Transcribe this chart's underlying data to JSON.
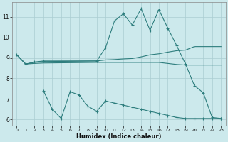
{
  "xlabel": "Humidex (Indice chaleur)",
  "bg_color": "#cce9ec",
  "grid_color": "#aacdd2",
  "line_color": "#2d7d7d",
  "xlim": [
    -0.5,
    23.5
  ],
  "ylim": [
    5.7,
    11.7
  ],
  "yticks": [
    6,
    7,
    8,
    9,
    10,
    11
  ],
  "xticks": [
    0,
    1,
    2,
    3,
    4,
    5,
    6,
    7,
    8,
    9,
    10,
    11,
    12,
    13,
    14,
    15,
    16,
    17,
    18,
    19,
    20,
    21,
    22,
    23
  ],
  "s1_has_markers": true,
  "s2_x": [
    0,
    1,
    2,
    3,
    9,
    10,
    11,
    12,
    13,
    14,
    15,
    16,
    17,
    18,
    19,
    20,
    21,
    22,
    23
  ],
  "s2_y": [
    9.15,
    8.7,
    8.78,
    8.82,
    8.85,
    8.9,
    8.92,
    8.95,
    8.97,
    9.05,
    9.15,
    9.2,
    9.28,
    9.35,
    9.38,
    9.55,
    9.55,
    9.55,
    9.55
  ],
  "s2_has_markers": false,
  "s3_x": [
    0,
    1,
    2,
    3,
    9,
    10,
    11,
    12,
    13,
    14,
    15,
    16,
    17,
    18,
    19,
    20,
    21,
    22,
    23
  ],
  "s3_y": [
    9.15,
    8.7,
    8.73,
    8.75,
    8.78,
    8.78,
    8.78,
    8.78,
    8.78,
    8.78,
    8.78,
    8.78,
    8.73,
    8.68,
    8.65,
    8.65,
    8.65,
    8.65,
    8.65
  ],
  "s3_has_markers": false,
  "s4_x": [
    3,
    4,
    5,
    6,
    7,
    8,
    9,
    10,
    11,
    12,
    13,
    14,
    15,
    16,
    17,
    18,
    19,
    20,
    21,
    22,
    23
  ],
  "s4_y": [
    7.4,
    6.5,
    6.05,
    7.35,
    7.2,
    6.65,
    6.4,
    6.9,
    6.8,
    6.7,
    6.6,
    6.5,
    6.4,
    6.3,
    6.2,
    6.1,
    6.05,
    6.05,
    6.05,
    6.05,
    6.05
  ],
  "s4_has_markers": true,
  "s1_marker_x": [
    0,
    1,
    2,
    3,
    9,
    10,
    11,
    12,
    13,
    14,
    15,
    16,
    17,
    18,
    19,
    20,
    21,
    22,
    23
  ],
  "s1_marker_y": [
    9.15,
    8.7,
    8.8,
    8.85,
    8.85,
    9.5,
    10.8,
    11.15,
    10.6,
    11.4,
    10.35,
    11.35,
    10.45,
    9.6,
    8.7,
    7.65,
    7.3,
    6.1,
    6.05
  ]
}
